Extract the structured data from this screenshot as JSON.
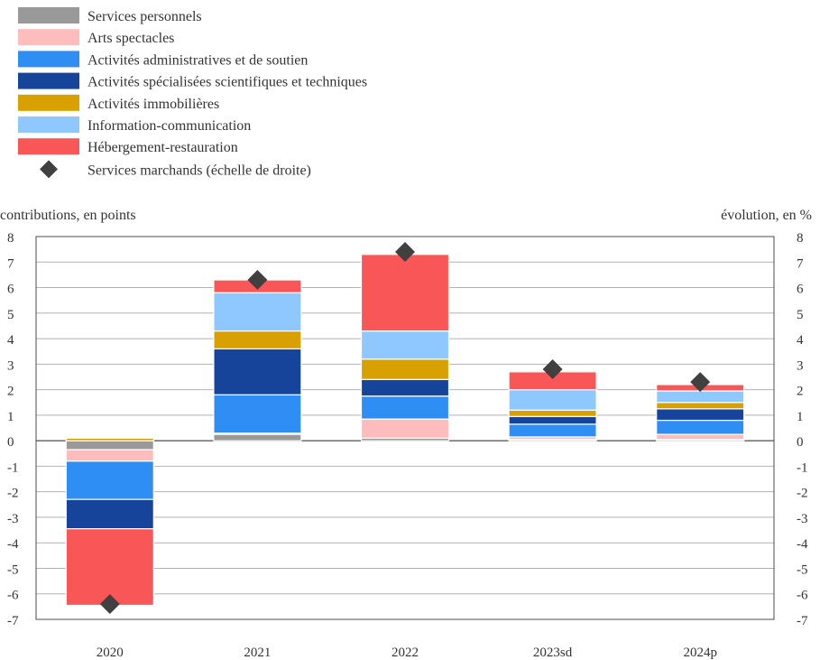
{
  "chart_data": {
    "type": "bar",
    "stacked": true,
    "categories": [
      "2020",
      "2021",
      "2022",
      "2023sd",
      "2024p"
    ],
    "left_axis_label": "contributions, en points",
    "right_axis_label": "évolution, en %",
    "ylim": [
      -7,
      8
    ],
    "yticks": [
      8,
      7,
      6,
      5,
      4,
      3,
      2,
      1,
      0,
      -1,
      -2,
      -3,
      -4,
      -5,
      -6,
      -7
    ],
    "grid": true,
    "legend_position": "top-left",
    "series": [
      {
        "name": "Services personnels",
        "color": "#999999",
        "values": [
          -0.35,
          0.25,
          0.1,
          0.05,
          0.05
        ]
      },
      {
        "name": "Arts spectacles",
        "color": "#ffbcbc",
        "values": [
          -0.45,
          0.05,
          0.75,
          0.1,
          0.2
        ]
      },
      {
        "name": "Activités administratives et de soutien",
        "color": "#2f8ef4",
        "values": [
          -1.5,
          1.5,
          0.9,
          0.5,
          0.55
        ]
      },
      {
        "name": "Activités spécialisées scientifiques et techniques",
        "color": "#16449b",
        "values": [
          -1.15,
          1.8,
          0.65,
          0.3,
          0.45
        ]
      },
      {
        "name": "Activités immobilières",
        "color": "#d8a000",
        "values": [
          0.1,
          0.7,
          0.8,
          0.25,
          0.25
        ]
      },
      {
        "name": "Information-communication",
        "color": "#8fc8ff",
        "values": [
          0.0,
          1.5,
          1.1,
          0.8,
          0.45
        ]
      },
      {
        "name": "Hébergement-restauration",
        "color": "#f95757",
        "values": [
          -3.0,
          0.5,
          3.0,
          0.7,
          0.25
        ]
      }
    ],
    "line_series": {
      "name": "Services marchands (échelle de droite)",
      "color": "#404040",
      "values": [
        -6.4,
        6.3,
        7.4,
        2.8,
        2.3
      ]
    }
  }
}
